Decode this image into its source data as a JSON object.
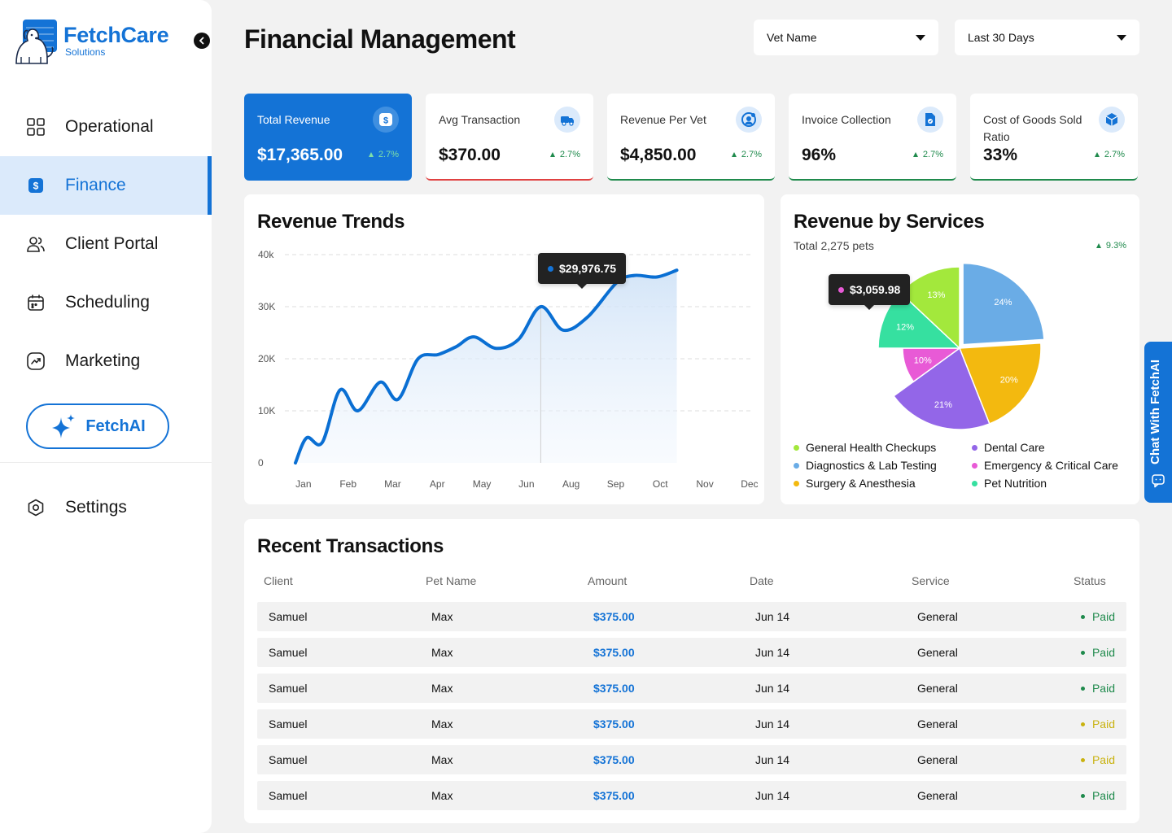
{
  "brand": {
    "name": "FetchCare",
    "sub": "Solutions"
  },
  "nav": [
    {
      "label": "Operational",
      "icon": "grid-icon"
    },
    {
      "label": "Finance",
      "icon": "dollar-icon",
      "active": true
    },
    {
      "label": "Client Portal",
      "icon": "users-icon"
    },
    {
      "label": "Scheduling",
      "icon": "calendar-icon"
    },
    {
      "label": "Marketing",
      "icon": "trend-icon"
    }
  ],
  "fetchai": {
    "label": "FetchAI"
  },
  "settings": {
    "label": "Settings"
  },
  "header": {
    "title": "Financial Management",
    "filters": [
      {
        "value": "Vet Name"
      },
      {
        "value": "Last 30 Days"
      }
    ]
  },
  "kpis": [
    {
      "label": "Total Revenue",
      "value": "$17,365.00",
      "delta": "2.7%",
      "icon": "dollar-icon"
    },
    {
      "label": "Avg Transaction",
      "value": "$370.00",
      "delta": "2.7%",
      "icon": "truck-icon",
      "accent": "#e04141"
    },
    {
      "label": "Revenue Per Vet",
      "value": "$4,850.00",
      "delta": "2.7%",
      "icon": "vet-icon",
      "accent": "#1f8a4c"
    },
    {
      "label": "Invoice Collection",
      "value": "96%",
      "delta": "2.7%",
      "icon": "invoice-icon",
      "accent": "#1f8a4c"
    },
    {
      "label": "Cost of Goods Sold Ratio",
      "value": "33%",
      "delta": "2.7%",
      "icon": "box-icon",
      "accent": "#1f8a4c"
    }
  ],
  "revenue_trends": {
    "title": "Revenue Trends",
    "tooltip": "$29,976.75"
  },
  "revenue_services": {
    "title": "Revenue by Services",
    "subtitle": "Total 2,275 pets",
    "delta": "9.3%",
    "tooltip": "$3,059.98"
  },
  "chart_data": [
    {
      "type": "line",
      "title": "Revenue Trends",
      "x": [
        "Jan",
        "Feb",
        "Mar",
        "Apr",
        "May",
        "Jun",
        "Aug",
        "Sep",
        "Oct",
        "Nov",
        "Dec"
      ],
      "yticks": [
        "0",
        "10K",
        "20K",
        "30K",
        "40k"
      ],
      "ylim": [
        0,
        40000
      ],
      "grid": true,
      "points": [
        [
          0.0,
          0
        ],
        [
          0.25,
          4800
        ],
        [
          0.6,
          3900
        ],
        [
          1.0,
          14000
        ],
        [
          1.4,
          10000
        ],
        [
          1.9,
          15500
        ],
        [
          2.3,
          12200
        ],
        [
          2.75,
          20000
        ],
        [
          3.2,
          20800
        ],
        [
          3.6,
          22300
        ],
        [
          4.0,
          24200
        ],
        [
          4.5,
          22000
        ],
        [
          5.0,
          23700
        ],
        [
          5.5,
          30000
        ],
        [
          6.0,
          25500
        ],
        [
          6.55,
          28000
        ],
        [
          7.2,
          34600
        ],
        [
          7.6,
          36000
        ],
        [
          8.1,
          35700
        ],
        [
          8.55,
          37000
        ]
      ],
      "highlight": {
        "x": 5.5,
        "y": 29976.75,
        "label": "$29,976.75"
      }
    },
    {
      "type": "pie",
      "title": "Revenue by Services",
      "slices": [
        {
          "name": "Diagnostics & Lab Testing",
          "value": 24,
          "label": "24%",
          "color": "#6aace6"
        },
        {
          "name": "Surgery & Anesthesia",
          "value": 20,
          "label": "20%",
          "color": "#f3b90f"
        },
        {
          "name": "Dental Care",
          "value": 21,
          "label": "21%",
          "color": "#9366e8"
        },
        {
          "name": "Emergency & Critical Care",
          "value": 10,
          "label": "10%",
          "color": "#e85ad6"
        },
        {
          "name": "Pet Nutrition",
          "value": 12,
          "label": "12%",
          "color": "#36e0a0"
        },
        {
          "name": "General Health Checkups",
          "value": 13,
          "label": "13%",
          "color": "#a3e83c"
        }
      ],
      "highlight": {
        "slice": "Emergency & Critical Care",
        "label": "$3,059.98"
      }
    }
  ],
  "legend": [
    {
      "name": "General Health Checkups",
      "color": "#a3e83c"
    },
    {
      "name": "Dental Care",
      "color": "#9366e8"
    },
    {
      "name": "Diagnostics & Lab Testing",
      "color": "#6aace6"
    },
    {
      "name": "Emergency & Critical Care",
      "color": "#e85ad6"
    },
    {
      "name": "Surgery & Anesthesia",
      "color": "#f3b90f"
    },
    {
      "name": "Pet Nutrition",
      "color": "#36e0a0"
    }
  ],
  "transactions": {
    "title": "Recent Transactions",
    "columns": [
      "Client",
      "Pet Name",
      "Amount",
      "Date",
      "Service",
      "Status"
    ],
    "rows": [
      {
        "client": "Samuel",
        "pet": "Max",
        "amount": "$375.00",
        "date": "Jun 14",
        "service": "General",
        "status": "Paid",
        "status_color": "#1f8a4c"
      },
      {
        "client": "Samuel",
        "pet": "Max",
        "amount": "$375.00",
        "date": "Jun 14",
        "service": "General",
        "status": "Paid",
        "status_color": "#1f8a4c"
      },
      {
        "client": "Samuel",
        "pet": "Max",
        "amount": "$375.00",
        "date": "Jun 14",
        "service": "General",
        "status": "Paid",
        "status_color": "#1f8a4c"
      },
      {
        "client": "Samuel",
        "pet": "Max",
        "amount": "$375.00",
        "date": "Jun 14",
        "service": "General",
        "status": "Paid",
        "status_color": "#c9b20f"
      },
      {
        "client": "Samuel",
        "pet": "Max",
        "amount": "$375.00",
        "date": "Jun 14",
        "service": "General",
        "status": "Paid",
        "status_color": "#c9b20f"
      },
      {
        "client": "Samuel",
        "pet": "Max",
        "amount": "$375.00",
        "date": "Jun 14",
        "service": "General",
        "status": "Paid",
        "status_color": "#1f8a4c"
      }
    ]
  },
  "chat": {
    "label": "Chat With FetchAI"
  }
}
